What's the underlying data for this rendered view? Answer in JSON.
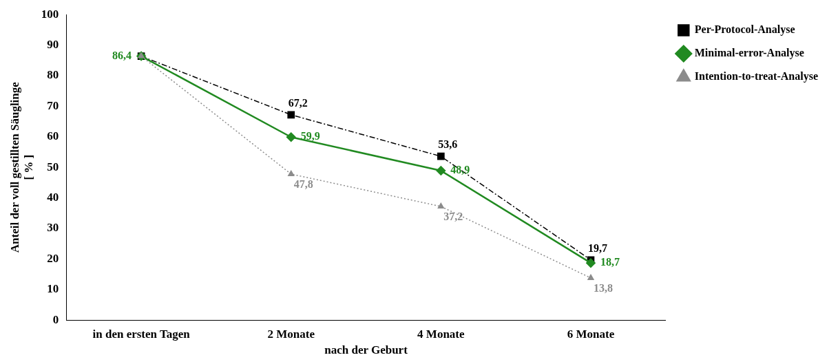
{
  "chart_data": {
    "type": "line",
    "xlabel": "nach der Geburt",
    "ylabel": "Anteil der voll gestillten Säuglinge\n[ % ]",
    "categories": [
      "in den ersten Tagen",
      "2 Monate",
      "4 Monate",
      "6 Monate"
    ],
    "series": [
      {
        "name": "Per-Protocol-Analyse",
        "color": "#000000",
        "marker": "square",
        "line_style": "dashdot",
        "values": [
          86.4,
          67.2,
          53.6,
          19.7
        ],
        "value_labels": [
          null,
          "67,2",
          "53,6",
          "19,7"
        ]
      },
      {
        "name": "Minimal-error-Analyse",
        "color": "#218a21",
        "marker": "diamond",
        "line_style": "solid",
        "values": [
          86.4,
          59.9,
          48.9,
          18.7
        ],
        "value_labels": [
          "86,4",
          "59,9",
          "48,9",
          "18,7"
        ]
      },
      {
        "name": "Intention-to-treat-Analyse",
        "color": "#8c8c8c",
        "marker": "triangle",
        "line_style": "dotted",
        "values": [
          86.4,
          47.8,
          37.2,
          13.8
        ],
        "value_labels": [
          null,
          "47,8",
          "37,2",
          "13,8"
        ]
      }
    ],
    "ylim": [
      0,
      100
    ],
    "yticks": [
      0,
      10,
      20,
      30,
      40,
      50,
      60,
      70,
      80,
      90,
      100
    ],
    "grid": false,
    "legend": "top right"
  }
}
